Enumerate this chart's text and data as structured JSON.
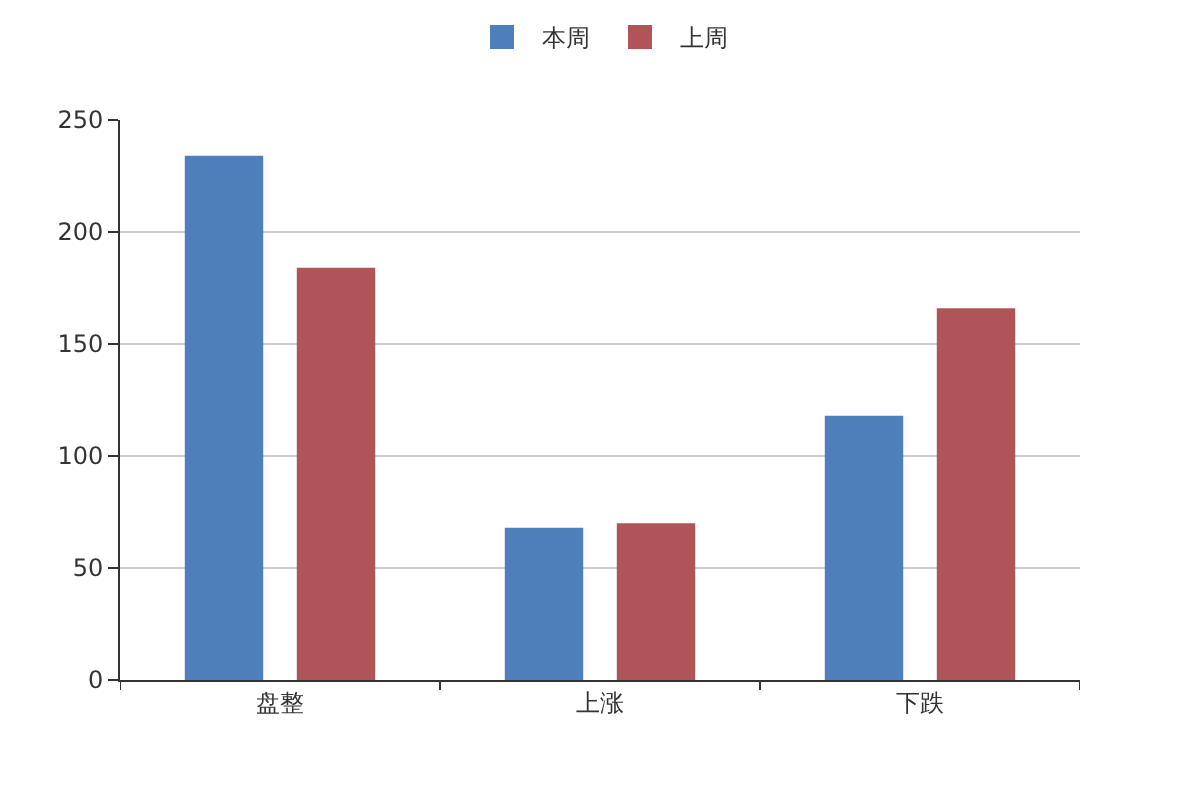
{
  "chart_data": {
    "type": "bar",
    "categories": [
      "盘整",
      "上涨",
      "下跌"
    ],
    "series": [
      {
        "name": "本周",
        "color": "#4e7fbb",
        "values": [
          234,
          68,
          118
        ]
      },
      {
        "name": "上周",
        "color": "#b05457",
        "values": [
          184,
          70,
          166
        ]
      }
    ],
    "ylim": [
      0,
      250
    ],
    "yticks": [
      0,
      50,
      100,
      150,
      200,
      250
    ],
    "grid": "y",
    "legend": "top"
  }
}
